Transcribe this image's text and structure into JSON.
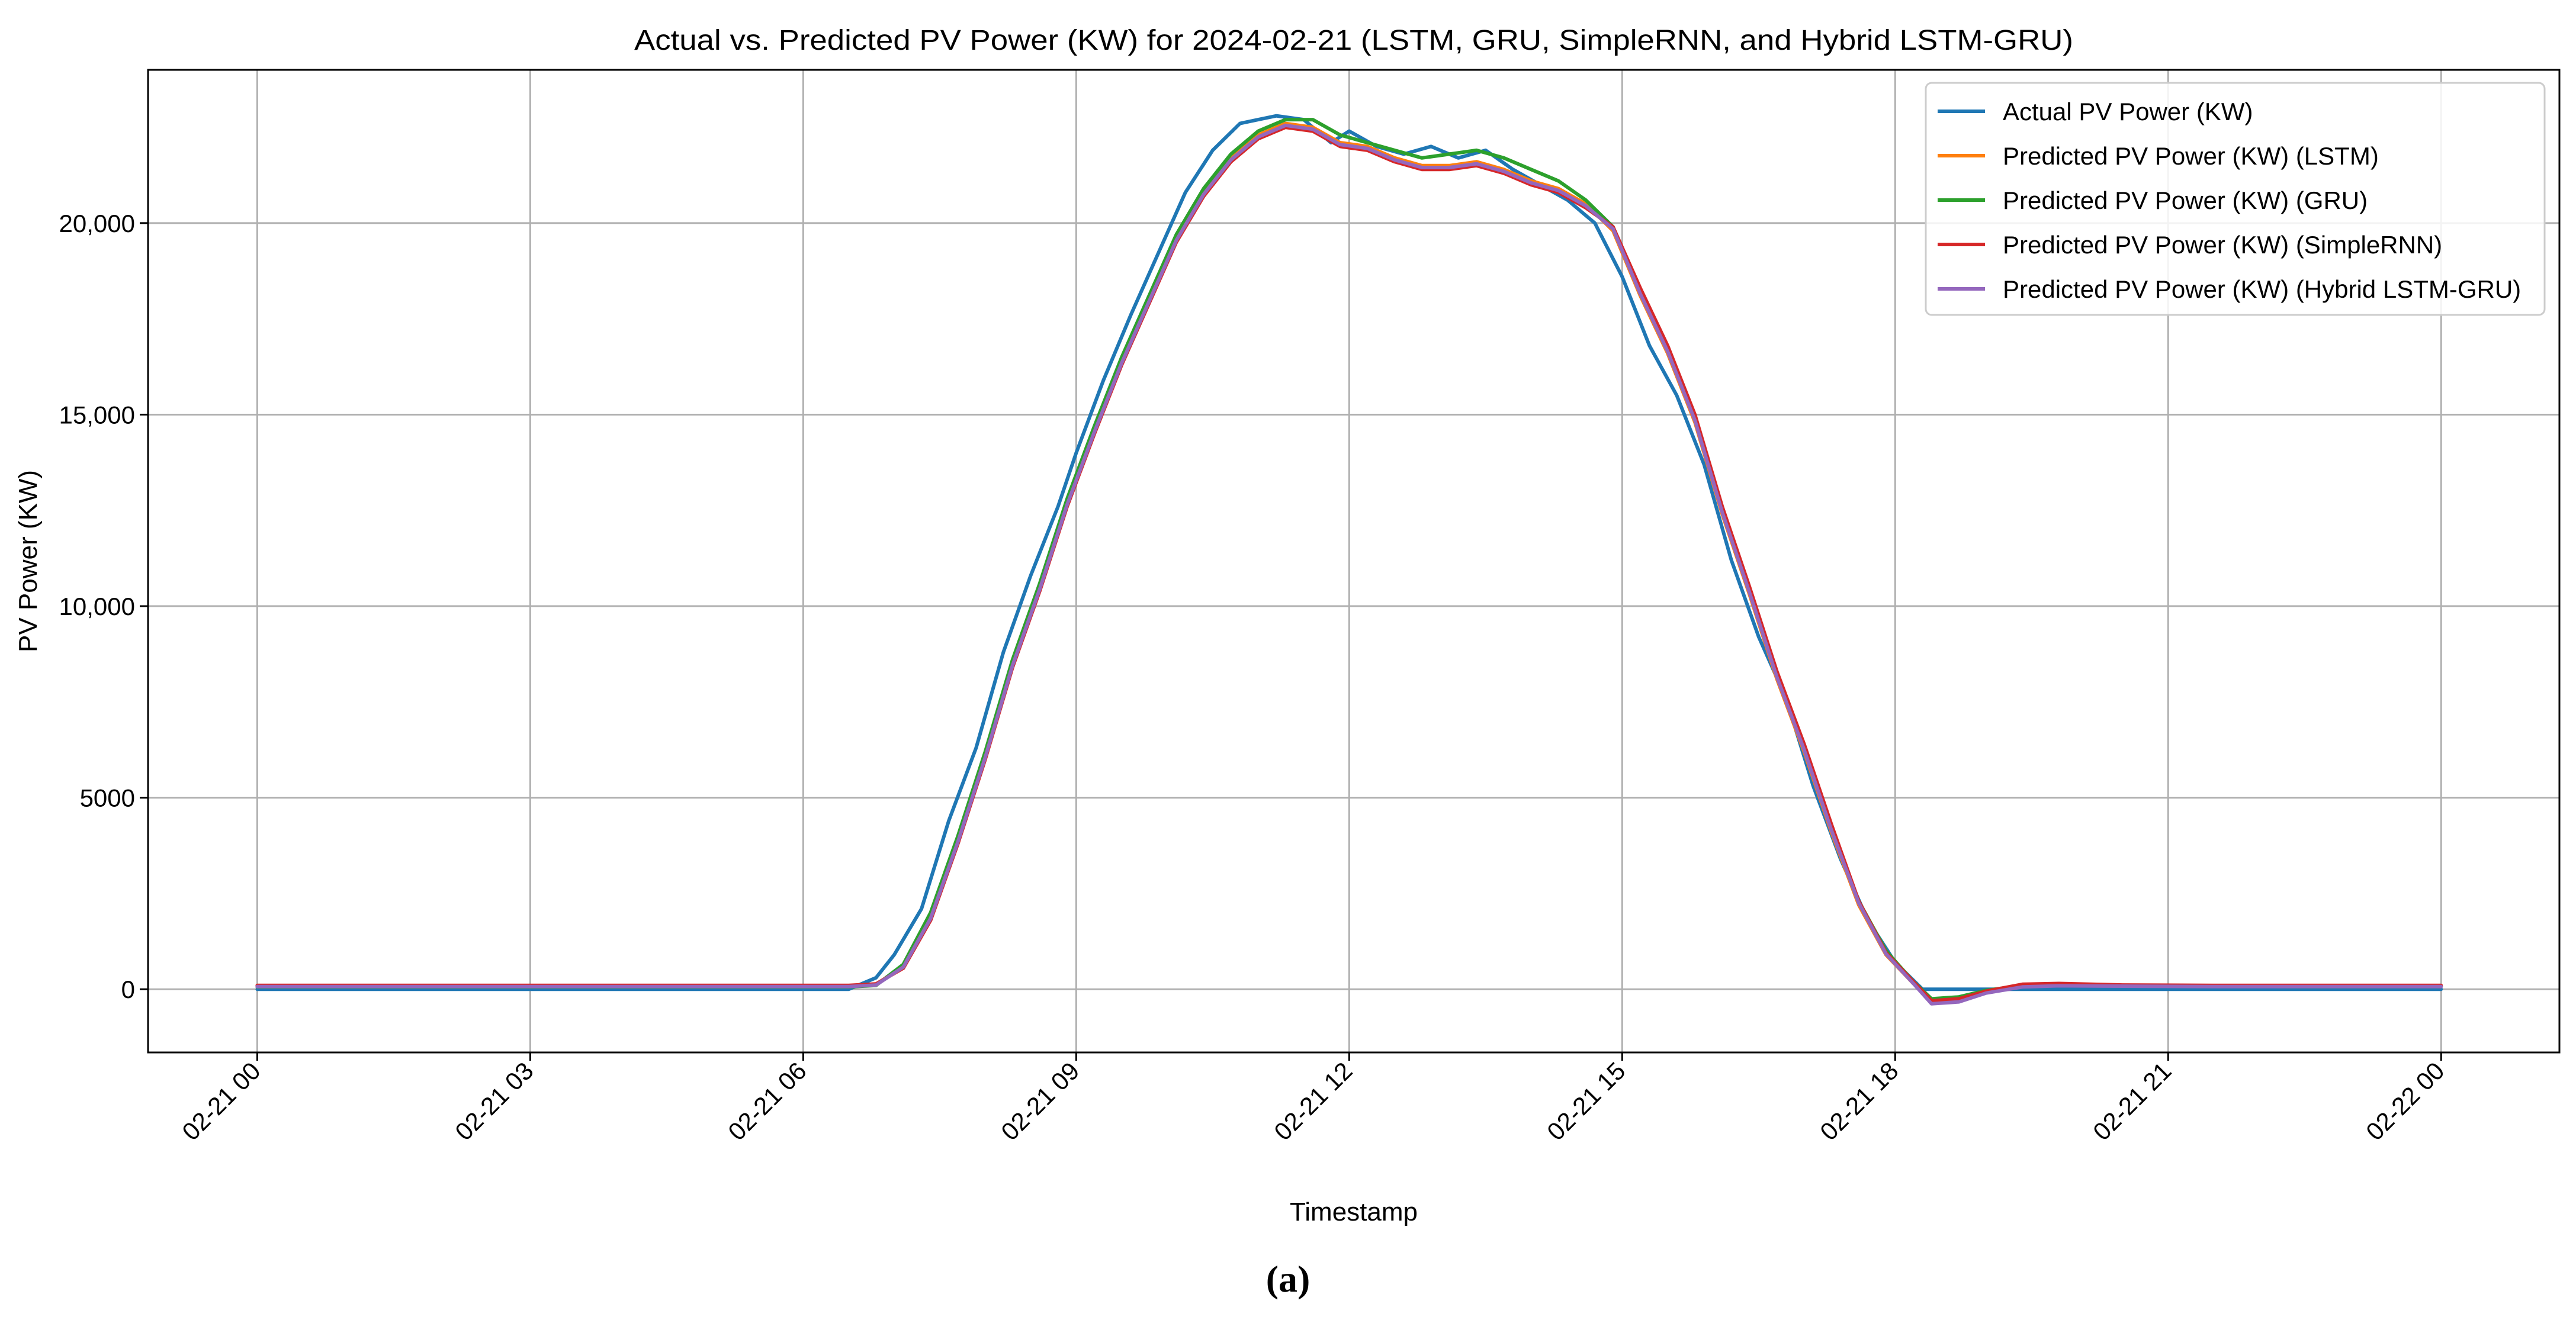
{
  "chart_data": {
    "type": "line",
    "title": "Actual vs. Predicted PV Power (KW) for 2024-02-21 (LSTM, GRU, SimpleRNN, and Hybrid LSTM-GRU)",
    "xlabel": "Timestamp",
    "ylabel": "PV Power (KW)",
    "panel_label": "(a)",
    "x_unit": "hours from 02-21 00:00",
    "xlim": [
      -1.2,
      25.3
    ],
    "ylim": [
      -1650,
      24000
    ],
    "x_ticks": [
      {
        "value": 0,
        "label": "02-21 00"
      },
      {
        "value": 3,
        "label": "02-21 03"
      },
      {
        "value": 6,
        "label": "02-21 06"
      },
      {
        "value": 9,
        "label": "02-21 09"
      },
      {
        "value": 12,
        "label": "02-21 12"
      },
      {
        "value": 15,
        "label": "02-21 15"
      },
      {
        "value": 18,
        "label": "02-21 18"
      },
      {
        "value": 21,
        "label": "02-21 21"
      },
      {
        "value": 24,
        "label": "02-22 00"
      }
    ],
    "y_ticks": [
      {
        "value": 0,
        "label": "0"
      },
      {
        "value": 5000,
        "label": "5000"
      },
      {
        "value": 10000,
        "label": "10,000"
      },
      {
        "value": 15000,
        "label": "15,000"
      },
      {
        "value": 20000,
        "label": "20,000"
      }
    ],
    "grid": true,
    "legend_position": "top-right",
    "series": [
      {
        "name": "Actual PV Power (KW)",
        "color": "#1f77b4",
        "x": [
          0,
          6.5,
          6.8,
          7.0,
          7.3,
          7.6,
          7.9,
          8.2,
          8.5,
          8.8,
          9.0,
          9.3,
          9.6,
          9.9,
          10.2,
          10.5,
          10.8,
          11.0,
          11.2,
          11.5,
          11.8,
          12.0,
          12.3,
          12.6,
          12.9,
          13.2,
          13.5,
          13.8,
          14.1,
          14.4,
          14.7,
          15.0,
          15.3,
          15.6,
          15.9,
          16.2,
          16.5,
          16.8,
          17.1,
          17.4,
          17.7,
          18.0,
          18.3,
          18.6,
          19.0,
          20.0,
          21.0,
          22.0,
          23.0,
          24.0
        ],
        "y": [
          0,
          0,
          300,
          900,
          2100,
          4400,
          6300,
          8800,
          10800,
          12600,
          14000,
          15900,
          17600,
          19200,
          20800,
          21900,
          22600,
          22700,
          22800,
          22700,
          22100,
          22400,
          22000,
          21800,
          22000,
          21700,
          21900,
          21400,
          21000,
          20600,
          20000,
          18600,
          16800,
          15500,
          13700,
          11200,
          9200,
          7600,
          5300,
          3400,
          1800,
          700,
          0,
          0,
          0,
          0,
          0,
          0,
          0,
          0
        ]
      },
      {
        "name": "Predicted PV Power (KW) (LSTM)",
        "color": "#ff7f0e",
        "x": [
          0,
          6.5,
          6.8,
          7.1,
          7.4,
          7.7,
          8.0,
          8.3,
          8.6,
          8.9,
          9.2,
          9.5,
          9.8,
          10.1,
          10.4,
          10.7,
          11.0,
          11.3,
          11.6,
          11.9,
          12.2,
          12.5,
          12.8,
          13.1,
          13.4,
          13.7,
          14.0,
          14.3,
          14.6,
          14.9,
          15.2,
          15.5,
          15.8,
          16.1,
          16.4,
          16.7,
          17.0,
          17.3,
          17.6,
          17.9,
          18.2,
          18.4,
          18.7,
          19.0,
          19.4,
          19.8,
          20.5,
          21.5,
          22.5,
          23.5,
          24.0
        ],
        "y": [
          80,
          80,
          120,
          600,
          1900,
          3900,
          6100,
          8500,
          10500,
          12700,
          14600,
          16400,
          18000,
          19600,
          20800,
          21700,
          22300,
          22600,
          22500,
          22100,
          22000,
          21700,
          21500,
          21500,
          21600,
          21400,
          21100,
          20900,
          20500,
          19800,
          18100,
          16600,
          14800,
          12400,
          10300,
          8100,
          6200,
          4100,
          2200,
          900,
          150,
          -300,
          -250,
          -50,
          90,
          110,
          90,
          80,
          80,
          80,
          80
        ]
      },
      {
        "name": "Predicted PV Power (KW) (GRU)",
        "color": "#2ca02c",
        "x": [
          0,
          6.5,
          6.8,
          7.1,
          7.4,
          7.7,
          8.0,
          8.3,
          8.6,
          8.9,
          9.2,
          9.5,
          9.8,
          10.1,
          10.4,
          10.7,
          11.0,
          11.3,
          11.6,
          11.9,
          12.2,
          12.5,
          12.8,
          13.1,
          13.4,
          13.7,
          14.0,
          14.3,
          14.6,
          14.9,
          15.2,
          15.5,
          15.8,
          16.1,
          16.4,
          16.7,
          17.0,
          17.3,
          17.6,
          17.9,
          18.2,
          18.4,
          18.7,
          19.0,
          19.4,
          19.8,
          20.5,
          21.5,
          22.5,
          23.5,
          24.0
        ],
        "y": [
          60,
          60,
          100,
          650,
          2000,
          4000,
          6200,
          8600,
          10600,
          12800,
          14700,
          16500,
          18100,
          19700,
          20900,
          21800,
          22400,
          22700,
          22700,
          22300,
          22100,
          21900,
          21700,
          21800,
          21900,
          21700,
          21400,
          21100,
          20600,
          19900,
          18200,
          16700,
          14900,
          12500,
          10400,
          8200,
          6300,
          4200,
          2300,
          1000,
          200,
          -250,
          -200,
          -30,
          100,
          120,
          100,
          80,
          70,
          70,
          70
        ]
      },
      {
        "name": "Predicted PV Power (KW) (SimpleRNN)",
        "color": "#d62728",
        "x": [
          0,
          6.5,
          6.8,
          7.1,
          7.4,
          7.7,
          8.0,
          8.3,
          8.6,
          8.9,
          9.2,
          9.5,
          9.8,
          10.1,
          10.4,
          10.7,
          11.0,
          11.3,
          11.6,
          11.9,
          12.2,
          12.5,
          12.8,
          13.1,
          13.4,
          13.7,
          14.0,
          14.3,
          14.6,
          14.9,
          15.2,
          15.5,
          15.8,
          16.1,
          16.4,
          16.7,
          17.0,
          17.3,
          17.6,
          17.9,
          18.2,
          18.4,
          18.7,
          19.0,
          19.4,
          19.8,
          20.5,
          21.5,
          22.5,
          23.5,
          24.0
        ],
        "y": [
          100,
          100,
          140,
          550,
          1800,
          3800,
          6000,
          8400,
          10400,
          12600,
          14500,
          16300,
          17900,
          19500,
          20700,
          21600,
          22200,
          22500,
          22400,
          22000,
          21900,
          21600,
          21400,
          21400,
          21500,
          21300,
          21000,
          20800,
          20400,
          19900,
          18300,
          16800,
          15000,
          12600,
          10500,
          8300,
          6400,
          4300,
          2300,
          950,
          200,
          -300,
          -250,
          -50,
          130,
          150,
          110,
          100,
          100,
          100,
          100
        ]
      },
      {
        "name": "Predicted PV Power (KW) (Hybrid LSTM-GRU)",
        "color": "#9467bd",
        "x": [
          0,
          6.5,
          6.8,
          7.1,
          7.4,
          7.7,
          8.0,
          8.3,
          8.6,
          8.9,
          9.2,
          9.5,
          9.8,
          10.1,
          10.4,
          10.7,
          11.0,
          11.3,
          11.6,
          11.9,
          12.2,
          12.5,
          12.8,
          13.1,
          13.4,
          13.7,
          14.0,
          14.3,
          14.6,
          14.9,
          15.2,
          15.5,
          15.8,
          16.1,
          16.4,
          16.7,
          17.0,
          17.3,
          17.6,
          17.9,
          18.2,
          18.4,
          18.7,
          19.0,
          19.4,
          19.8,
          20.5,
          21.5,
          22.5,
          23.5,
          24.0
        ],
        "y": [
          70,
          70,
          110,
          580,
          1850,
          3850,
          6050,
          8450,
          10450,
          12650,
          14550,
          16350,
          17950,
          19550,
          20750,
          21650,
          22250,
          22550,
          22450,
          22050,
          21950,
          21650,
          21450,
          21450,
          21550,
          21350,
          21050,
          20850,
          20450,
          19850,
          18150,
          16650,
          14850,
          12450,
          10350,
          8150,
          6250,
          4150,
          2250,
          920,
          150,
          -380,
          -330,
          -100,
          60,
          90,
          80,
          70,
          70,
          70,
          70
        ]
      }
    ]
  }
}
